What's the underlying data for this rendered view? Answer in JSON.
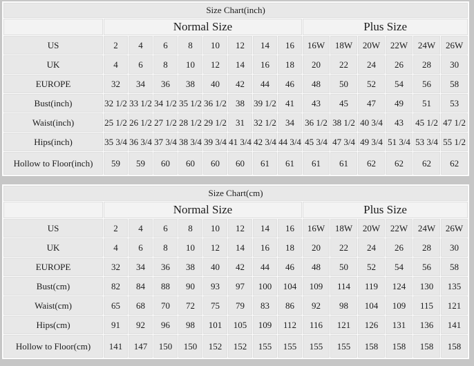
{
  "colors": {
    "page_background": "#c6c6c6",
    "grid_background": "#fcfcfc",
    "data_cell_background": "#e8e8e8",
    "header_cell_background": "#f3f3f3",
    "text": "#1b1b1b"
  },
  "chart_data": [
    {
      "type": "table",
      "title": "Size Chart(inch)",
      "column_groups": [
        {
          "label": "Normal Size",
          "span": 8
        },
        {
          "label": "Plus Size",
          "span": 6
        }
      ],
      "rows": [
        {
          "label": "US",
          "values": [
            "2",
            "4",
            "6",
            "8",
            "10",
            "12",
            "14",
            "16",
            "16W",
            "18W",
            "20W",
            "22W",
            "24W",
            "26W"
          ]
        },
        {
          "label": "UK",
          "values": [
            "4",
            "6",
            "8",
            "10",
            "12",
            "14",
            "16",
            "18",
            "20",
            "22",
            "24",
            "26",
            "28",
            "30"
          ]
        },
        {
          "label": "EUROPE",
          "values": [
            "32",
            "34",
            "36",
            "38",
            "40",
            "42",
            "44",
            "46",
            "48",
            "50",
            "52",
            "54",
            "56",
            "58"
          ]
        },
        {
          "label": "Bust(inch)",
          "values": [
            "32 1/2",
            "33 1/2",
            "34 1/2",
            "35 1/2",
            "36 1/2",
            "38",
            "39 1/2",
            "41",
            "43",
            "45",
            "47",
            "49",
            "51",
            "53"
          ]
        },
        {
          "label": "Waist(inch)",
          "values": [
            "25 1/2",
            "26 1/2",
            "27 1/2",
            "28 1/2",
            "29 1/2",
            "31",
            "32 1/2",
            "34",
            "36 1/2",
            "38 1/2",
            "40 3/4",
            "43",
            "45 1/2",
            "47 1/2"
          ]
        },
        {
          "label": "Hips(inch)",
          "values": [
            "35 3/4",
            "36 3/4",
            "37 3/4",
            "38 3/4",
            "39 3/4",
            "41 3/4",
            "42 3/4",
            "44 3/4",
            "45 3/4",
            "47 3/4",
            "49 3/4",
            "51 3/4",
            "53 3/4",
            "55 1/2"
          ]
        },
        {
          "label": "Hollow to Floor(inch)",
          "values": [
            "59",
            "59",
            "60",
            "60",
            "60",
            "60",
            "61",
            "61",
            "61",
            "61",
            "62",
            "62",
            "62",
            "62"
          ]
        }
      ]
    },
    {
      "type": "table",
      "title": "Size Chart(cm)",
      "column_groups": [
        {
          "label": "Normal Size",
          "span": 8
        },
        {
          "label": "Plus Size",
          "span": 6
        }
      ],
      "rows": [
        {
          "label": "US",
          "values": [
            "2",
            "4",
            "6",
            "8",
            "10",
            "12",
            "14",
            "16",
            "16W",
            "18W",
            "20W",
            "22W",
            "24W",
            "26W"
          ]
        },
        {
          "label": "UK",
          "values": [
            "4",
            "6",
            "8",
            "10",
            "12",
            "14",
            "16",
            "18",
            "20",
            "22",
            "24",
            "26",
            "28",
            "30"
          ]
        },
        {
          "label": "EUROPE",
          "values": [
            "32",
            "34",
            "36",
            "38",
            "40",
            "42",
            "44",
            "46",
            "48",
            "50",
            "52",
            "54",
            "56",
            "58"
          ]
        },
        {
          "label": "Bust(cm)",
          "values": [
            "82",
            "84",
            "88",
            "90",
            "93",
            "97",
            "100",
            "104",
            "109",
            "114",
            "119",
            "124",
            "130",
            "135"
          ]
        },
        {
          "label": "Waist(cm)",
          "values": [
            "65",
            "68",
            "70",
            "72",
            "75",
            "79",
            "83",
            "86",
            "92",
            "98",
            "104",
            "109",
            "115",
            "121"
          ]
        },
        {
          "label": "Hips(cm)",
          "values": [
            "91",
            "92",
            "96",
            "98",
            "101",
            "105",
            "109",
            "112",
            "116",
            "121",
            "126",
            "131",
            "136",
            "141"
          ]
        },
        {
          "label": "Hollow to Floor(cm)",
          "values": [
            "141",
            "147",
            "150",
            "150",
            "152",
            "152",
            "155",
            "155",
            "155",
            "155",
            "158",
            "158",
            "158",
            "158"
          ]
        }
      ]
    }
  ]
}
